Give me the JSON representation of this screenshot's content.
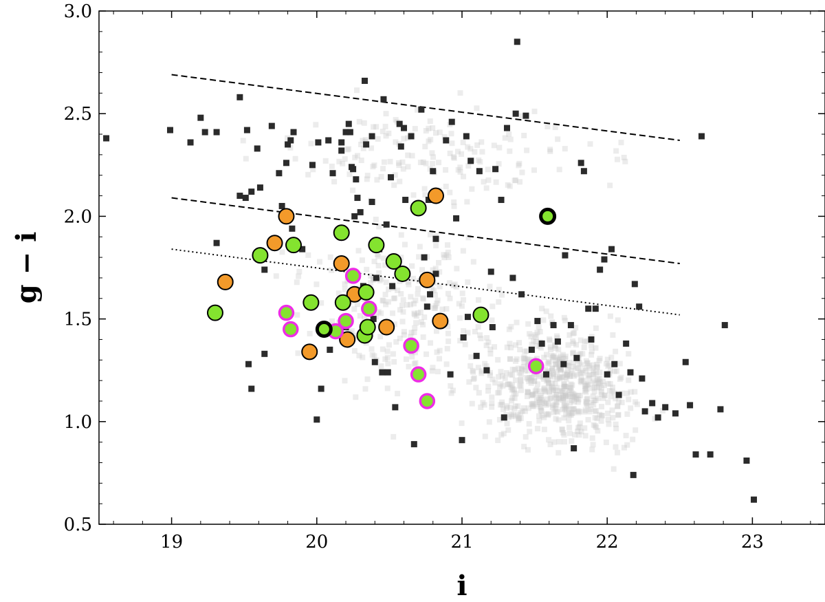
{
  "chart_data": {
    "type": "scatter",
    "xlabel": "i",
    "ylabel": "g − i",
    "xlim": [
      18.5,
      23.5
    ],
    "ylim": [
      0.5,
      3.0
    ],
    "xticks": [
      "19",
      "20",
      "21",
      "22",
      "23"
    ],
    "yticks": [
      "0.5",
      "1.0",
      "1.5",
      "2.0",
      "2.5",
      "3.0"
    ],
    "grid": false,
    "colors": {
      "background_field": "#c8c8c8",
      "dark_square": "#2b2b2b",
      "orange": "#f39a2a",
      "green": "#84e32f",
      "magenta": "#ee2ce6",
      "outline": "#000000"
    },
    "lines": [
      {
        "style": "dashed",
        "points": [
          [
            19.0,
            2.69
          ],
          [
            22.5,
            2.37
          ]
        ]
      },
      {
        "style": "dashed",
        "points": [
          [
            19.0,
            2.09
          ],
          [
            22.5,
            1.77
          ]
        ]
      },
      {
        "style": "dotted",
        "points": [
          [
            19.0,
            1.84
          ],
          [
            22.5,
            1.52
          ]
        ]
      }
    ],
    "dark_squares": [
      [
        18.55,
        2.38
      ],
      [
        18.99,
        2.42
      ],
      [
        19.13,
        2.36
      ],
      [
        19.2,
        2.48
      ],
      [
        19.23,
        2.41
      ],
      [
        19.31,
        2.41
      ],
      [
        19.31,
        1.87
      ],
      [
        19.47,
        2.58
      ],
      [
        19.47,
        2.1
      ],
      [
        19.51,
        2.09
      ],
      [
        19.52,
        2.42
      ],
      [
        19.53,
        1.28
      ],
      [
        19.55,
        1.16
      ],
      [
        19.55,
        2.12
      ],
      [
        19.59,
        2.33
      ],
      [
        19.61,
        2.14
      ],
      [
        19.64,
        1.74
      ],
      [
        19.69,
        2.44
      ],
      [
        19.74,
        2.21
      ],
      [
        19.76,
        2.05
      ],
      [
        19.79,
        2.26
      ],
      [
        19.8,
        2.35
      ],
      [
        19.82,
        2.37
      ],
      [
        19.83,
        1.94
      ],
      [
        19.84,
        2.41
      ],
      [
        19.9,
        1.84
      ],
      [
        19.95,
        1.6
      ],
      [
        19.97,
        2.25
      ],
      [
        20.0,
        1.01
      ],
      [
        20.01,
        2.36
      ],
      [
        20.03,
        1.16
      ],
      [
        20.08,
        2.37
      ],
      [
        20.11,
        2.21
      ],
      [
        20.17,
        2.32
      ],
      [
        20.17,
        2.36
      ],
      [
        20.2,
        2.41
      ],
      [
        20.2,
        1.46
      ],
      [
        20.22,
        2.45
      ],
      [
        20.23,
        2.41
      ],
      [
        20.24,
        2.24
      ],
      [
        20.25,
        2.23
      ],
      [
        20.27,
        2.18
      ],
      [
        20.28,
        2.09
      ],
      [
        20.3,
        2.02
      ],
      [
        20.32,
        1.66
      ],
      [
        20.33,
        2.66
      ],
      [
        20.34,
        2.35
      ],
      [
        20.38,
        2.07
      ],
      [
        20.38,
        2.39
      ],
      [
        20.39,
        1.5
      ],
      [
        20.4,
        1.29
      ],
      [
        20.43,
        1.84
      ],
      [
        20.45,
        1.24
      ],
      [
        20.46,
        2.57
      ],
      [
        20.48,
        1.96
      ],
      [
        20.49,
        1.24
      ],
      [
        20.51,
        2.19
      ],
      [
        20.52,
        1.66
      ],
      [
        20.54,
        1.07
      ],
      [
        20.57,
        2.45
      ],
      [
        20.58,
        2.34
      ],
      [
        20.6,
        2.43
      ],
      [
        20.61,
        2.08
      ],
      [
        20.65,
        2.39
      ],
      [
        20.67,
        0.89
      ],
      [
        20.72,
        2.52
      ],
      [
        20.74,
        1.8
      ],
      [
        20.76,
        1.56
      ],
      [
        20.77,
        2.08
      ],
      [
        20.78,
        1.62
      ],
      [
        20.8,
        2.22
      ],
      [
        20.82,
        1.89
      ],
      [
        20.89,
        2.37
      ],
      [
        20.92,
        1.23
      ],
      [
        20.93,
        2.46
      ],
      [
        20.96,
        1.99
      ],
      [
        21.01,
        1.41
      ],
      [
        21.03,
        2.39
      ],
      [
        21.04,
        1.51
      ],
      [
        21.06,
        2.27
      ],
      [
        21.1,
        1.32
      ],
      [
        21.12,
        2.22
      ],
      [
        21.17,
        1.25
      ],
      [
        21.21,
        1.46
      ],
      [
        21.23,
        2.23
      ],
      [
        21.27,
        2.08
      ],
      [
        21.29,
        1.02
      ],
      [
        21.31,
        2.43
      ],
      [
        21.35,
        1.7
      ],
      [
        21.37,
        2.5
      ],
      [
        21.38,
        2.85
      ],
      [
        21.41,
        1.62
      ],
      [
        21.44,
        2.49
      ],
      [
        21.48,
        1.35
      ],
      [
        21.52,
        1.49
      ],
      [
        21.58,
        1.23
      ],
      [
        21.63,
        1.47
      ],
      [
        21.66,
        1.39
      ],
      [
        21.7,
        1.28
      ],
      [
        21.75,
        1.47
      ],
      [
        21.77,
        0.87
      ],
      [
        21.79,
        1.31
      ],
      [
        21.82,
        2.26
      ],
      [
        21.84,
        2.22
      ],
      [
        21.87,
        1.55
      ],
      [
        21.89,
        1.4
      ],
      [
        21.92,
        1.55
      ],
      [
        21.95,
        1.74
      ],
      [
        21.98,
        1.79
      ],
      [
        22.0,
        1.23
      ],
      [
        22.03,
        1.84
      ],
      [
        22.05,
        1.28
      ],
      [
        22.08,
        1.13
      ],
      [
        22.13,
        1.38
      ],
      [
        22.16,
        1.24
      ],
      [
        22.19,
        1.67
      ],
      [
        22.22,
        1.56
      ],
      [
        22.24,
        1.21
      ],
      [
        22.26,
        1.05
      ],
      [
        22.31,
        1.09
      ],
      [
        22.35,
        1.02
      ],
      [
        22.4,
        1.07
      ],
      [
        22.47,
        1.04
      ],
      [
        22.54,
        1.29
      ],
      [
        22.57,
        1.08
      ],
      [
        22.61,
        0.84
      ],
      [
        22.65,
        2.39
      ],
      [
        22.71,
        0.84
      ],
      [
        22.78,
        1.06
      ],
      [
        22.81,
        1.47
      ],
      [
        22.96,
        0.81
      ],
      [
        23.01,
        0.62
      ],
      [
        22.18,
        0.74
      ],
      [
        21.0,
        0.91
      ],
      [
        21.55,
        1.38
      ],
      [
        20.82,
        1.72
      ],
      [
        20.09,
        1.35
      ],
      [
        19.64,
        1.33
      ],
      [
        21.71,
        1.81
      ],
      [
        21.2,
        1.73
      ],
      [
        20.26,
        2.0
      ],
      [
        20.41,
        1.7
      ]
    ],
    "orange_points": [
      [
        19.37,
        1.68
      ],
      [
        19.71,
        1.87
      ],
      [
        19.79,
        2.0
      ],
      [
        19.95,
        1.34
      ],
      [
        20.17,
        1.77
      ],
      [
        20.21,
        1.4
      ],
      [
        20.26,
        1.62
      ],
      [
        20.48,
        1.46
      ],
      [
        20.76,
        1.69
      ],
      [
        20.82,
        2.1
      ],
      [
        20.85,
        1.49
      ]
    ],
    "green_points": [
      [
        19.3,
        1.53
      ],
      [
        19.61,
        1.81
      ],
      [
        19.84,
        1.86
      ],
      [
        19.96,
        1.58
      ],
      [
        20.17,
        1.92
      ],
      [
        20.18,
        1.58
      ],
      [
        20.33,
        1.42
      ],
      [
        20.34,
        1.63
      ],
      [
        20.35,
        1.46
      ],
      [
        20.41,
        1.86
      ],
      [
        20.53,
        1.78
      ],
      [
        20.59,
        1.72
      ],
      [
        20.7,
        2.04
      ],
      [
        21.13,
        1.52
      ]
    ],
    "magenta_points": [
      [
        19.79,
        1.53
      ],
      [
        19.82,
        1.45
      ],
      [
        20.13,
        1.44
      ],
      [
        20.2,
        1.49
      ],
      [
        20.25,
        1.71
      ],
      [
        20.36,
        1.55
      ],
      [
        20.65,
        1.37
      ],
      [
        20.7,
        1.23
      ],
      [
        20.76,
        1.1
      ],
      [
        21.51,
        1.27
      ]
    ],
    "black_ring_points": [
      [
        20.05,
        1.45
      ],
      [
        21.59,
        2.0
      ]
    ]
  }
}
